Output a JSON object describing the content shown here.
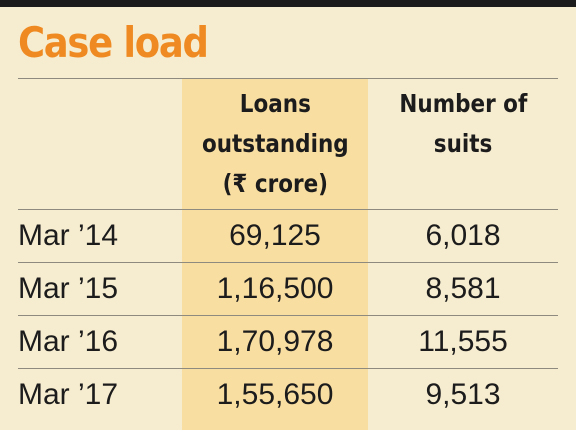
{
  "chart_data": {
    "type": "table",
    "title": "Case load",
    "columns": [
      "",
      "Loans outstanding (₹ crore)",
      "Number of suits"
    ],
    "column_header_lines": [
      [],
      [
        "Loans",
        "outstanding",
        "(₹ crore)"
      ],
      [
        "Number of",
        "suits"
      ]
    ],
    "rows": [
      {
        "label": "Mar ’14",
        "loans": "69,125",
        "suits": "6,018"
      },
      {
        "label": "Mar ’15",
        "loans": "1,16,500",
        "suits": "8,581"
      },
      {
        "label": "Mar ’16",
        "loans": "1,70,978",
        "suits": "11,555"
      },
      {
        "label": "Mar ’17",
        "loans": "1,55,650",
        "suits": "9,513"
      }
    ]
  },
  "colors": {
    "background": "#f6eccf",
    "highlight_column": "#f9dea2",
    "title": "#ee8a21",
    "top_rule": "#1b1b1b"
  }
}
